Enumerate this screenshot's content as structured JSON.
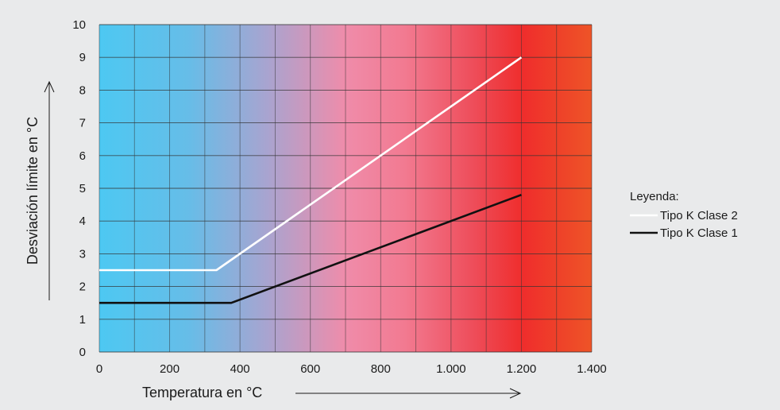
{
  "chart_data": {
    "type": "line",
    "xlabel": "Temperatura en °C",
    "ylabel": "Desviación límite en °C",
    "xlim": [
      0,
      1400
    ],
    "ylim": [
      0,
      10
    ],
    "x_ticks": [
      0,
      200,
      400,
      600,
      800,
      1000,
      1200,
      1400
    ],
    "x_tick_labels": [
      "0",
      "200",
      "400",
      "600",
      "800",
      "1.000",
      "1.200",
      "1.400"
    ],
    "y_ticks": [
      0,
      1,
      2,
      3,
      4,
      5,
      6,
      7,
      8,
      9,
      10
    ],
    "y_tick_labels": [
      "0",
      "1",
      "2",
      "3",
      "4",
      "5",
      "6",
      "7",
      "8",
      "9",
      "10"
    ],
    "grid": true,
    "background": "horizontal gradient from light blue (cold) to red (hot)",
    "legend": {
      "title": "Leyenda:",
      "position": "right"
    },
    "series": [
      {
        "name": "Tipo K Clase 2",
        "color": "#ffffff",
        "x": [
          0,
          333,
          1200
        ],
        "y": [
          2.5,
          2.5,
          9.0
        ]
      },
      {
        "name": "Tipo K Clase 1",
        "color": "#111111",
        "x": [
          0,
          375,
          1200
        ],
        "y": [
          1.5,
          1.5,
          4.8
        ]
      }
    ]
  },
  "colors": {
    "page_background": "#e9eaeb",
    "grid_color": "#3a3a3a",
    "gradient_cold": "#4cc8f2",
    "gradient_mid": "#f08aa8",
    "gradient_hot": "#ee3424"
  }
}
